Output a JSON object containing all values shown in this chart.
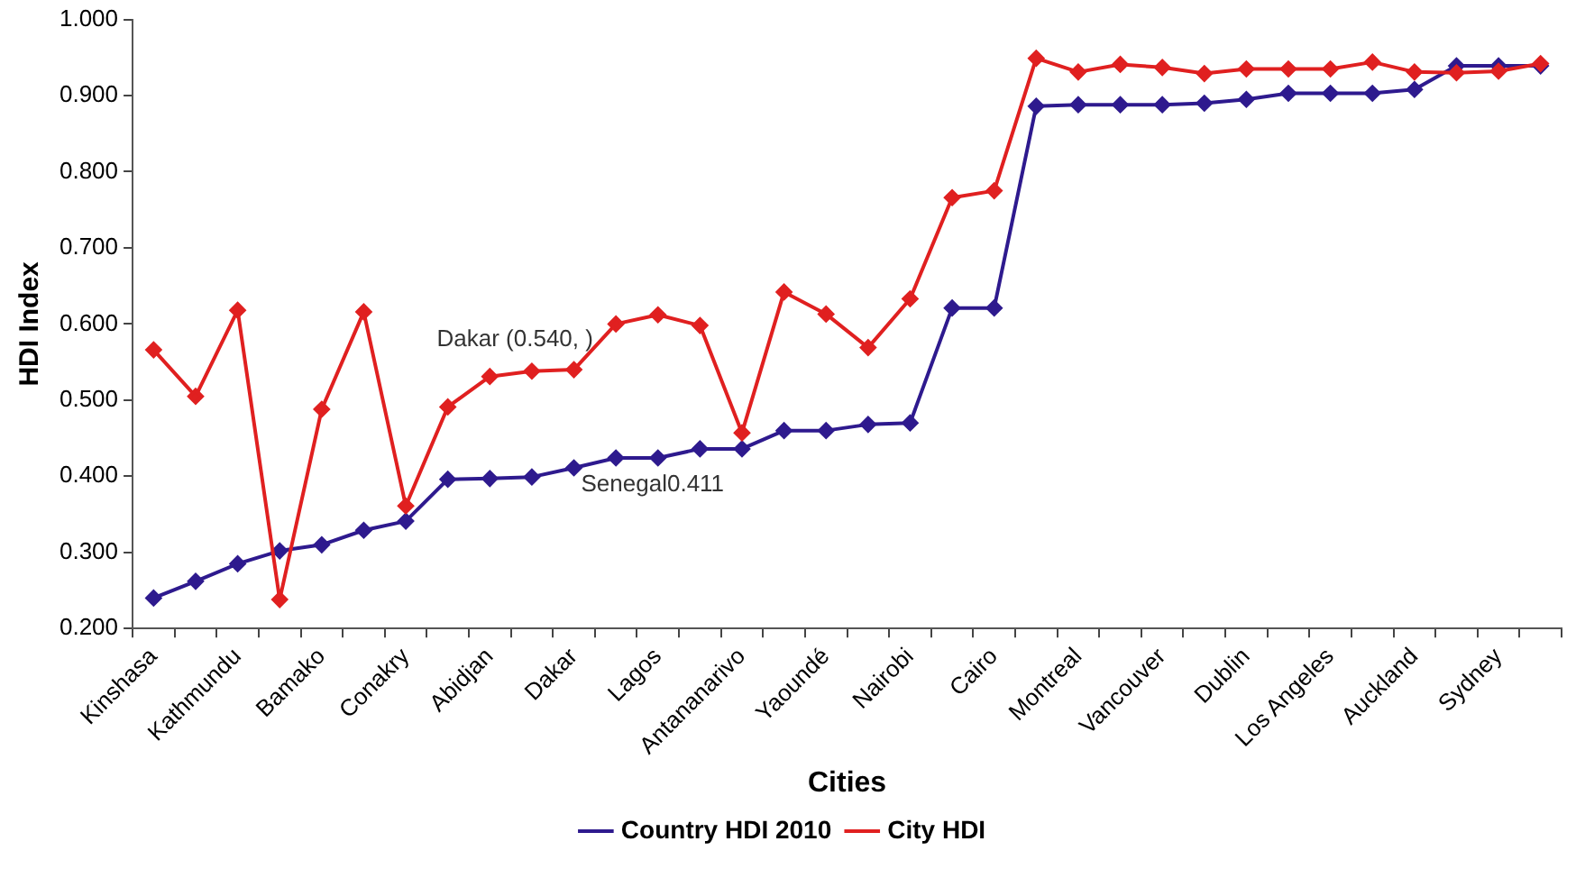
{
  "chart_data": {
    "type": "line",
    "xlabel": "Cities",
    "ylabel": "HDI Index",
    "categories": [
      "Kinshasa",
      null,
      "Kathmundu",
      null,
      "Bamako",
      null,
      "Conakry",
      null,
      "Abidjan",
      null,
      "Dakar",
      null,
      "Lagos",
      null,
      "Antananarivo",
      null,
      "Yaoundé",
      null,
      "Nairobi",
      null,
      "Cairo",
      null,
      "Montreal",
      null,
      "Vancouver",
      null,
      "Dublin",
      null,
      "Los Angeles",
      null,
      "Auckland",
      null,
      "Sydney",
      null
    ],
    "series": [
      {
        "name": "Country HDI 2010",
        "color": "#2e1a8e",
        "values": [
          0.24,
          0.262,
          0.285,
          0.302,
          0.31,
          0.329,
          0.341,
          0.396,
          0.397,
          0.399,
          0.411,
          0.424,
          0.424,
          0.436,
          0.436,
          0.46,
          0.46,
          0.468,
          0.47,
          0.621,
          0.621,
          0.886,
          0.888,
          0.888,
          0.888,
          0.89,
          0.895,
          0.903,
          0.903,
          0.903,
          0.908,
          0.939,
          0.939,
          0.939
        ]
      },
      {
        "name": "City HDI",
        "color": "#e02020",
        "values": [
          0.566,
          0.505,
          0.618,
          0.238,
          0.488,
          0.616,
          0.361,
          0.491,
          0.531,
          0.538,
          0.54,
          0.6,
          0.612,
          0.598,
          0.457,
          0.642,
          0.613,
          0.569,
          0.633,
          0.766,
          0.775,
          0.949,
          0.931,
          0.941,
          0.937,
          0.929,
          0.935,
          0.935,
          0.935,
          0.944,
          0.931,
          0.93,
          0.932,
          0.942
        ]
      }
    ],
    "ylim": [
      0.2,
      1.0
    ],
    "yticks": [
      {
        "value": 0.2,
        "label": "0.200"
      },
      {
        "value": 0.3,
        "label": "0.300"
      },
      {
        "value": 0.4,
        "label": "0.400"
      },
      {
        "value": 0.5,
        "label": "0.500"
      },
      {
        "value": 0.6,
        "label": "0.600"
      },
      {
        "value": 0.7,
        "label": "0.700"
      },
      {
        "value": 0.8,
        "label": "0.800"
      },
      {
        "value": 0.9,
        "label": "0.900"
      },
      {
        "value": 1.0,
        "label": "1.000"
      }
    ],
    "annotations": [
      {
        "text": "Dakar (0.540, )",
        "x": "Dakar",
        "y": 0.54
      },
      {
        "text": "Senegal0.411",
        "x": "Dakar",
        "y": 0.411
      }
    ],
    "grid": false,
    "legend": "bottom",
    "marker": "diamond",
    "line_style": "solid"
  }
}
